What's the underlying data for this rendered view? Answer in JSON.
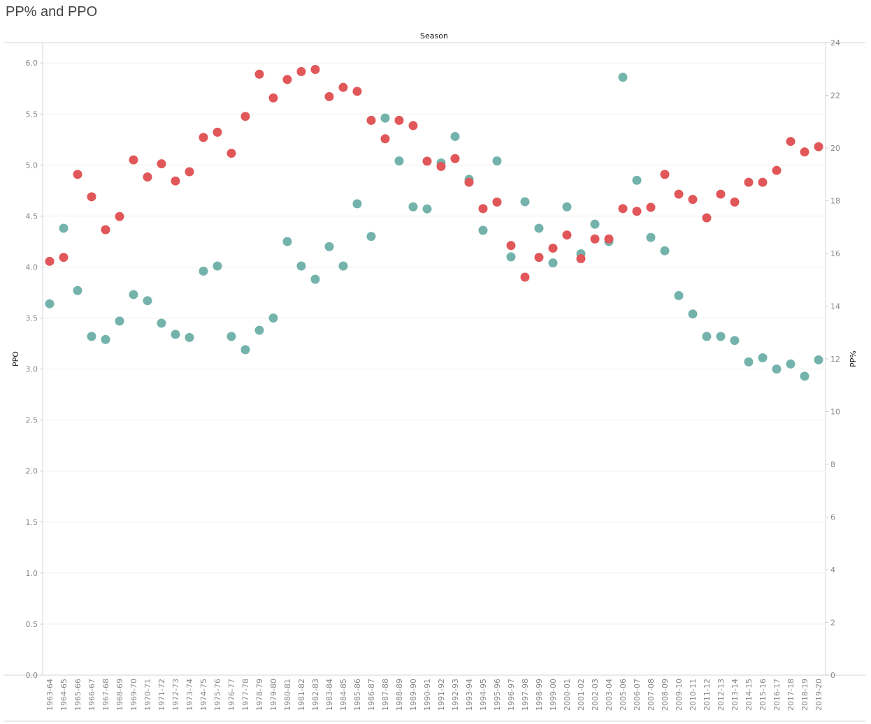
{
  "title": "PP% and PPO",
  "colors": {
    "ppo": "#73b3ab",
    "pp_pct": "#e15759"
  },
  "chart_data": {
    "type": "scatter",
    "title": "PP% and PPO",
    "xlabel": "Season",
    "ylabel_left": "PPO",
    "ylabel_right": "PP%",
    "ylim_left": [
      0,
      6.2
    ],
    "ylim_right": [
      0,
      24
    ],
    "yticks_left": [
      "0.0",
      "0.5",
      "1.0",
      "1.5",
      "2.0",
      "2.5",
      "3.0",
      "3.5",
      "4.0",
      "4.5",
      "5.0",
      "5.5",
      "6.0"
    ],
    "yticks_right": [
      "0",
      "2",
      "4",
      "6",
      "8",
      "10",
      "12",
      "14",
      "16",
      "18",
      "20",
      "22",
      "24"
    ],
    "categories": [
      "1963-64",
      "1964-65",
      "1965-66",
      "1966-67",
      "1967-68",
      "1968-69",
      "1969-70",
      "1970-71",
      "1971-72",
      "1972-73",
      "1973-74",
      "1974-75",
      "1975-76",
      "1976-77",
      "1977-78",
      "1978-79",
      "1979-80",
      "1980-81",
      "1981-82",
      "1982-83",
      "1983-84",
      "1984-85",
      "1985-86",
      "1986-87",
      "1987-88",
      "1988-89",
      "1989-90",
      "1990-91",
      "1991-92",
      "1992-93",
      "1993-94",
      "1994-95",
      "1995-96",
      "1996-97",
      "1997-98",
      "1998-99",
      "1999-00",
      "2000-01",
      "2001-02",
      "2002-03",
      "2003-04",
      "2005-06",
      "2006-07",
      "2007-08",
      "2008-09",
      "2009-10",
      "2010-11",
      "2011-12",
      "2012-13",
      "2013-14",
      "2014-15",
      "2015-16",
      "2016-17",
      "2017-18",
      "2018-19",
      "2019-20"
    ],
    "series": [
      {
        "name": "PPO",
        "axis": "left",
        "values": [
          3.64,
          4.38,
          3.77,
          3.32,
          3.29,
          3.47,
          3.73,
          3.67,
          3.45,
          3.34,
          3.31,
          3.96,
          4.01,
          3.32,
          3.19,
          3.38,
          3.5,
          4.25,
          4.01,
          3.88,
          4.2,
          4.01,
          4.62,
          4.3,
          5.46,
          5.04,
          4.59,
          4.57,
          5.02,
          5.28,
          4.86,
          4.36,
          5.04,
          4.1,
          4.64,
          4.38,
          4.04,
          4.59,
          4.13,
          4.42,
          4.25,
          5.86,
          4.85,
          4.29,
          4.16,
          3.72,
          3.54,
          3.32,
          3.32,
          3.28,
          3.07,
          3.11,
          3.0,
          3.05,
          2.93,
          3.09
        ]
      },
      {
        "name": "PP%",
        "axis": "right",
        "values": [
          15.7,
          15.85,
          19.0,
          18.15,
          16.9,
          17.4,
          19.55,
          18.9,
          19.4,
          18.75,
          19.1,
          20.4,
          20.6,
          19.8,
          21.2,
          22.8,
          21.9,
          22.6,
          22.9,
          22.98,
          21.95,
          22.3,
          22.15,
          21.05,
          20.35,
          21.05,
          20.85,
          19.5,
          19.3,
          19.6,
          18.7,
          17.7,
          17.95,
          16.3,
          15.1,
          15.85,
          16.2,
          16.7,
          15.8,
          16.55,
          16.55,
          17.7,
          17.6,
          17.75,
          19.0,
          18.25,
          18.05,
          17.35,
          18.25,
          17.95,
          18.7,
          18.7,
          19.15,
          20.25,
          19.85,
          20.05
        ]
      }
    ]
  }
}
